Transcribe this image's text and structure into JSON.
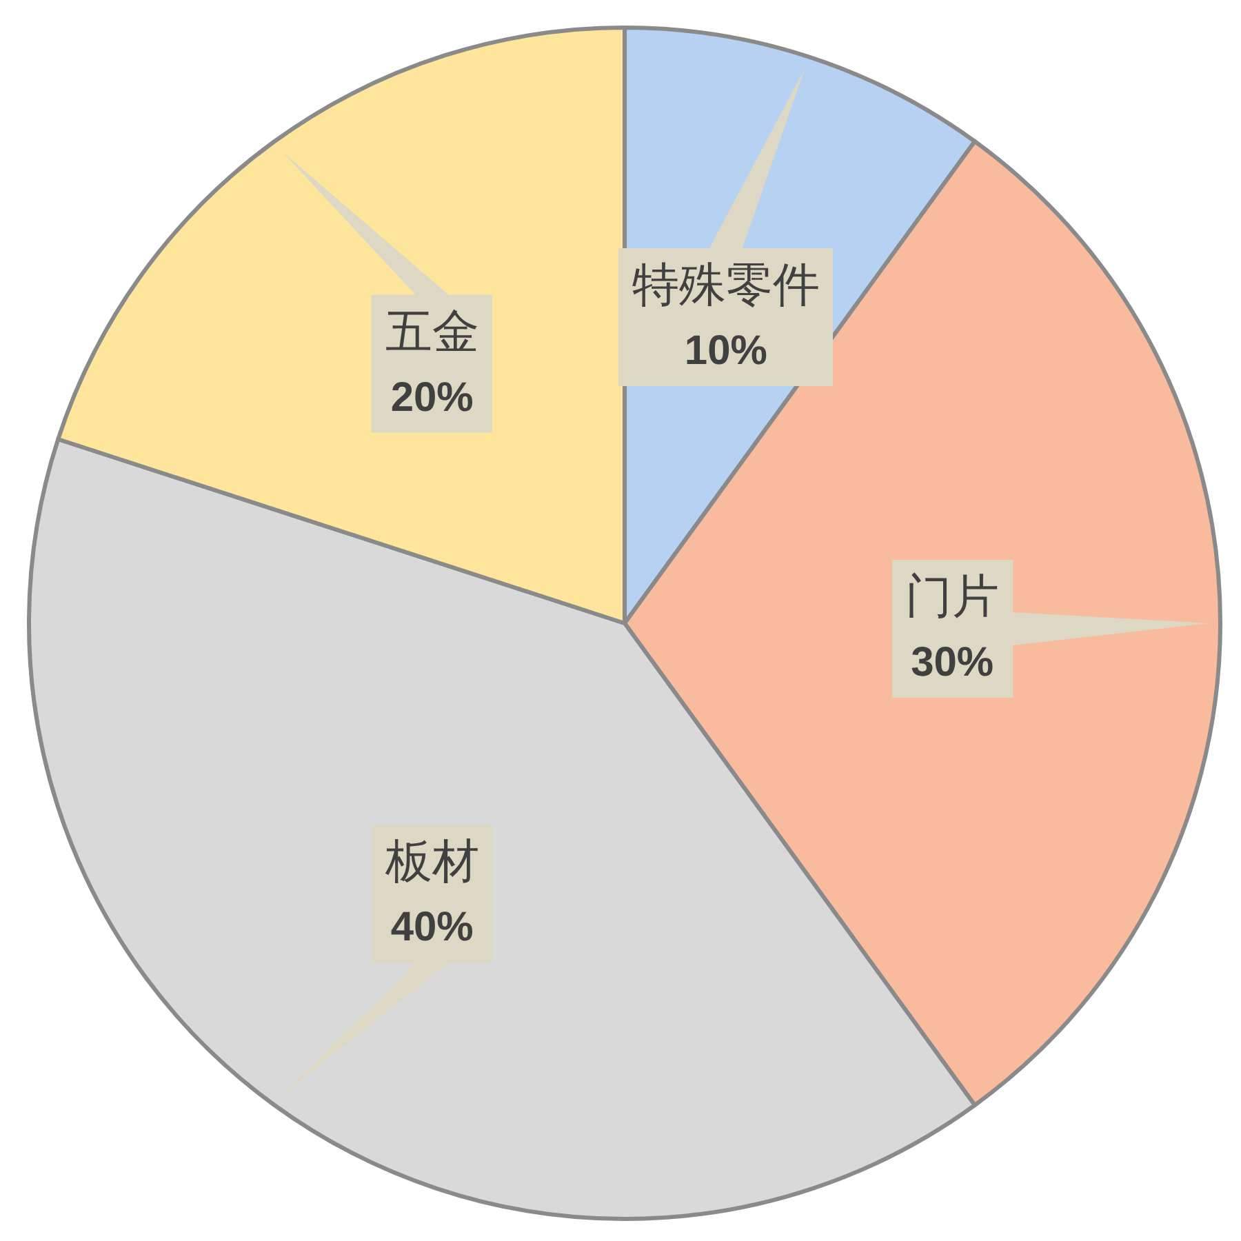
{
  "chart_data": {
    "type": "pie",
    "categories": [
      "特殊零件",
      "门片",
      "板材",
      "五金"
    ],
    "values": [
      10,
      30,
      40,
      20
    ],
    "colors": [
      "#b7d1f2",
      "#f8bb9e",
      "#d9d9d9",
      "#fde69c"
    ],
    "value_labels": [
      "10%",
      "30%",
      "40%",
      "20%"
    ]
  }
}
